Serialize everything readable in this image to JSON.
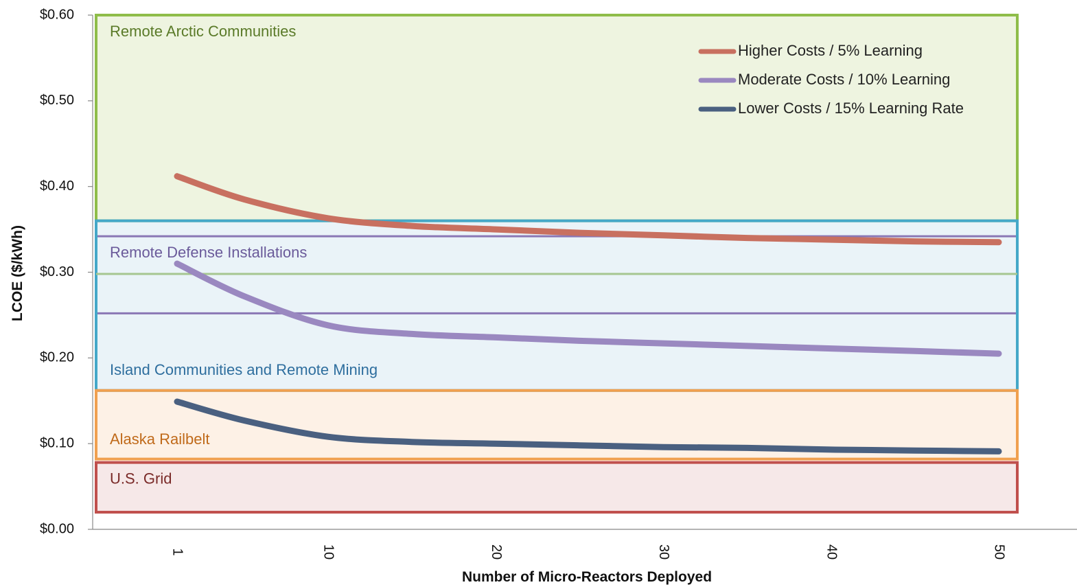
{
  "chart_data": {
    "type": "line",
    "ylabel": "LCOE ($/kWh)",
    "xlabel": "Number of Micro-Reactors  Deployed",
    "ylim": [
      0,
      0.6
    ],
    "y_ticks": [
      "$0.00",
      "$0.10",
      "$0.20",
      "$0.30",
      "$0.40",
      "$0.50",
      "$0.60"
    ],
    "x_tick_labels": [
      "1",
      "10",
      "20",
      "30",
      "40",
      "50"
    ],
    "legend_position": "top-right",
    "bands": [
      {
        "label": "Remote Arctic Communities",
        "ymin": 0.36,
        "ymax": 0.6,
        "color": "#8fbd4a",
        "fill": "#eef4e0",
        "text_color": "#5a7a28",
        "label_y": 0.58
      },
      {
        "label": "Remote Defense Installations",
        "ymin": 0.252,
        "ymax": 0.342,
        "color": "#8a77b5",
        "fill": "#dde0ec",
        "text_color": "#6a5a9a",
        "label_y": 0.322
      },
      {
        "label": "Island Communities and Remote Mining",
        "ymin": 0.162,
        "ymax": 0.36,
        "color": "#45a8c8",
        "fill": "#eaf3f8",
        "text_color": "#2e6e9e",
        "label_y": 0.185
      },
      {
        "label": "Alaska Railbelt",
        "ymin": 0.082,
        "ymax": 0.162,
        "color": "#f0a050",
        "fill": "#fdf1e6",
        "text_color": "#c06a1a",
        "label_y": 0.104
      },
      {
        "label": "U.S. Grid",
        "ymin": 0.02,
        "ymax": 0.078,
        "color": "#c0504d",
        "fill": "#f6e8e8",
        "text_color": "#7a2a28",
        "label_y": 0.058
      }
    ],
    "extra_lines": [
      {
        "y": 0.298,
        "color": "#a6c690"
      }
    ],
    "series": [
      {
        "name": "Higher Costs / 5% Learning",
        "color": "#c87060",
        "x": [
          1,
          5,
          10,
          15,
          20,
          25,
          30,
          35,
          40,
          45,
          50
        ],
        "y": [
          0.412,
          0.385,
          0.363,
          0.354,
          0.35,
          0.346,
          0.343,
          0.34,
          0.338,
          0.336,
          0.335
        ]
      },
      {
        "name": "Moderate Costs / 10% Learning",
        "color": "#9a88c0",
        "x": [
          1,
          5,
          10,
          15,
          20,
          25,
          30,
          35,
          40,
          45,
          50
        ],
        "y": [
          0.31,
          0.272,
          0.238,
          0.228,
          0.224,
          0.22,
          0.217,
          0.214,
          0.211,
          0.208,
          0.205
        ]
      },
      {
        "name": "Lower Costs / 15% Learning Rate",
        "color": "#4a6080",
        "x": [
          1,
          5,
          10,
          15,
          20,
          25,
          30,
          35,
          40,
          45,
          50
        ],
        "y": [
          0.149,
          0.127,
          0.108,
          0.102,
          0.1,
          0.098,
          0.096,
          0.095,
          0.093,
          0.092,
          0.091
        ]
      }
    ]
  }
}
